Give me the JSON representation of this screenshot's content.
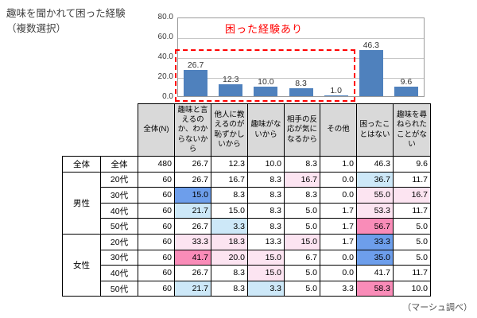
{
  "title": {
    "line1": "趣味を聞かれて困った経験",
    "line2": "（複数選択）"
  },
  "source_note": "（マーシュ調べ）",
  "colors": {
    "bar_blue": "#4f81bd",
    "annotation_red": "#ff0000",
    "header_bg": "#d9d9d9",
    "highlight_dark_blue": "#6d9eeb",
    "highlight_light_blue": "#cde8f8",
    "highlight_dark_pink": "#f98cb8",
    "highlight_light_pink": "#fce4f1"
  },
  "chart_data": {
    "type": "bar",
    "title": "趣味を聞かれて困った経験（複数選択）",
    "categories": [
      "趣味と言えるのか、わからないから",
      "他人に教えるのが恥ずかしいから",
      "趣味がないから",
      "相手の反応が気になるから",
      "その他",
      "困ったことはない",
      "趣味を尋ねられたことがない"
    ],
    "values": [
      26.7,
      12.3,
      10.0,
      8.3,
      1.0,
      46.3,
      9.6
    ],
    "ylim": [
      0,
      80
    ],
    "yticks": [
      "80.0",
      "60.0",
      "40.0",
      "20.0",
      "0.0"
    ],
    "grid": true,
    "legend": "none",
    "annotation": {
      "label": "困った経験あり",
      "covers_first_n_bars": 5
    }
  },
  "table": {
    "header": {
      "group_col": "",
      "age_col": "",
      "n_col": "全体(N)",
      "columns": [
        "趣味と言えるのか、わからないから",
        "他人に教えるのが恥ずかしいから",
        "趣味がないから",
        "相手の反応が気になるから",
        "その他",
        "困ったことはない",
        "趣味を尋ねられたことがない"
      ]
    },
    "rows": [
      {
        "group": "全体",
        "age": "全体",
        "n": "480",
        "values": [
          "26.7",
          "12.3",
          "10.0",
          "8.3",
          "1.0",
          "46.3",
          "9.6"
        ],
        "highlights": [
          "",
          "",
          "",
          "",
          "",
          "",
          ""
        ]
      },
      {
        "group": "男性",
        "age": "20代",
        "n": "60",
        "values": [
          "26.7",
          "16.7",
          "8.3",
          "16.7",
          "0.0",
          "36.7",
          "11.7"
        ],
        "highlights": [
          "",
          "",
          "",
          "lp",
          "",
          "lb",
          ""
        ]
      },
      {
        "group": "男性",
        "age": "30代",
        "n": "60",
        "values": [
          "15.0",
          "8.3",
          "8.3",
          "8.3",
          "0.0",
          "55.0",
          "16.7"
        ],
        "highlights": [
          "db",
          "",
          "",
          "",
          "",
          "lp",
          "lp"
        ]
      },
      {
        "group": "男性",
        "age": "40代",
        "n": "60",
        "values": [
          "21.7",
          "15.0",
          "8.3",
          "5.0",
          "1.7",
          "53.3",
          "11.7"
        ],
        "highlights": [
          "lb",
          "",
          "",
          "",
          "",
          "lp",
          ""
        ]
      },
      {
        "group": "男性",
        "age": "50代",
        "n": "60",
        "values": [
          "26.7",
          "3.3",
          "8.3",
          "5.0",
          "1.7",
          "56.7",
          "5.0"
        ],
        "highlights": [
          "",
          "lb",
          "",
          "",
          "",
          "dp",
          ""
        ]
      },
      {
        "group": "女性",
        "age": "20代",
        "n": "60",
        "values": [
          "33.3",
          "18.3",
          "13.3",
          "15.0",
          "1.7",
          "33.3",
          "5.0"
        ],
        "highlights": [
          "lp",
          "lp",
          "",
          "lp",
          "",
          "db",
          ""
        ]
      },
      {
        "group": "女性",
        "age": "30代",
        "n": "60",
        "values": [
          "41.7",
          "20.0",
          "15.0",
          "6.7",
          "0.0",
          "35.0",
          "5.0"
        ],
        "highlights": [
          "dp",
          "lp",
          "lp",
          "",
          "",
          "db",
          ""
        ]
      },
      {
        "group": "女性",
        "age": "40代",
        "n": "60",
        "values": [
          "26.7",
          "8.3",
          "15.0",
          "5.0",
          "0.0",
          "41.7",
          "11.7"
        ],
        "highlights": [
          "",
          "",
          "lp",
          "",
          "",
          "",
          ""
        ]
      },
      {
        "group": "女性",
        "age": "50代",
        "n": "60",
        "values": [
          "21.7",
          "8.3",
          "3.3",
          "5.0",
          "3.3",
          "58.3",
          "10.0"
        ],
        "highlights": [
          "lb",
          "",
          "lb",
          "",
          "",
          "dp",
          ""
        ]
      }
    ]
  }
}
